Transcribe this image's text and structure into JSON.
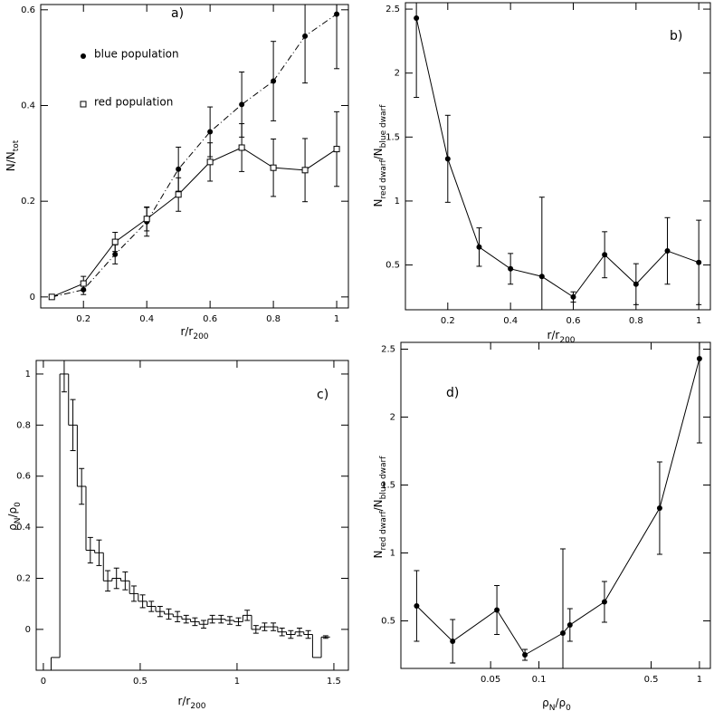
{
  "chart_data": [
    {
      "type": "line",
      "panel_label": "a)",
      "legend": "upper left",
      "xlabel": [
        {
          "text": "r/r"
        },
        {
          "text": "200",
          "sub": true
        }
      ],
      "ylabel": [
        {
          "text": "N/N"
        },
        {
          "text": "tot",
          "sub": true
        }
      ],
      "x": [
        0.1,
        0.2,
        0.3,
        0.4,
        0.5,
        0.6,
        0.7,
        0.8,
        0.9,
        1.0
      ],
      "series": [
        {
          "name": "blue population",
          "color": "#000000",
          "marker": "filled-circle",
          "linestyle": "dashdot",
          "values": [
            0,
            0.015,
            0.089,
            0.157,
            0.267,
            0.345,
            0.402,
            0.451,
            0.545,
            0.591
          ],
          "errors": [
            0.004,
            0.01,
            0.02,
            0.03,
            0.046,
            0.052,
            0.068,
            0.083,
            0.098,
            0.114
          ]
        },
        {
          "name": "red population",
          "color": "#000000",
          "marker": "open-square",
          "linestyle": "solid",
          "values": [
            0,
            0.028,
            0.115,
            0.163,
            0.214,
            0.282,
            0.312,
            0.27,
            0.265,
            0.309
          ],
          "errors": [
            0.004,
            0.015,
            0.02,
            0.025,
            0.035,
            0.04,
            0.05,
            0.06,
            0.066,
            0.078
          ]
        }
      ],
      "xlim": [
        0.065,
        1.037
      ],
      "ylim": [
        -0.023,
        0.611
      ],
      "xticks": [
        0.2,
        0.4,
        0.6,
        0.8,
        1
      ],
      "yticks": [
        0,
        0.2,
        0.4,
        0.6
      ]
    },
    {
      "type": "line",
      "panel_label": "b)",
      "xlabel": [
        {
          "text": "r/r"
        },
        {
          "text": "200",
          "sub": true
        }
      ],
      "ylabel": [
        {
          "text": "N"
        },
        {
          "text": "red dwarf",
          "sub": true
        },
        {
          "text": "/N"
        },
        {
          "text": "blue dwarf",
          "sub": true
        }
      ],
      "x": [
        0.1,
        0.2,
        0.3,
        0.4,
        0.5,
        0.6,
        0.7,
        0.8,
        0.9,
        1.0
      ],
      "series": [
        {
          "color": "#000000",
          "marker": "filled-circle",
          "linestyle": "solid",
          "values": [
            2.43,
            1.33,
            0.64,
            0.47,
            0.41,
            0.25,
            0.58,
            0.35,
            0.61,
            0.52
          ],
          "errors": [
            0.62,
            0.34,
            0.15,
            0.12,
            0.62,
            0.04,
            0.18,
            0.16,
            0.26,
            0.33
          ]
        }
      ],
      "xlim": [
        0.065,
        1.037
      ],
      "ylim": [
        0.15,
        2.55
      ],
      "xticks": [
        0.2,
        0.4,
        0.6,
        0.8,
        1
      ],
      "yticks": [
        0.5,
        1,
        1.5,
        2,
        2.5
      ]
    },
    {
      "type": "histogram",
      "panel_label": "c)",
      "color": "#000000",
      "xlabel": [
        {
          "text": "r/r"
        },
        {
          "text": "200",
          "sub": true
        }
      ],
      "ylabel": [
        {
          "text": "ρ"
        },
        {
          "text": "N",
          "sub": true
        },
        {
          "text": "/ρ"
        },
        {
          "text": "0",
          "sub": true
        }
      ],
      "bins": [
        0.04,
        0.085,
        0.13,
        0.175,
        0.22,
        0.265,
        0.31,
        0.355,
        0.4,
        0.445,
        0.49,
        0.535,
        0.58,
        0.625,
        0.67,
        0.715,
        0.76,
        0.805,
        0.85,
        0.895,
        0.94,
        0.985,
        1.03,
        1.075,
        1.12,
        1.165,
        1.21,
        1.255,
        1.3,
        1.345,
        1.39,
        1.435,
        1.48
      ],
      "values": [
        -0.11,
        1.0,
        0.8,
        0.56,
        0.31,
        0.3,
        0.19,
        0.2,
        0.19,
        0.14,
        0.11,
        0.09,
        0.07,
        0.06,
        0.05,
        0.04,
        0.03,
        0.02,
        0.04,
        0.04,
        0.035,
        0.03,
        0.055,
        0.0,
        0.01,
        0.01,
        -0.01,
        -0.02,
        -0.01,
        -0.02,
        -0.11,
        -0.03
      ],
      "errors": [
        null,
        0.07,
        0.1,
        0.07,
        0.05,
        0.05,
        0.04,
        0.04,
        0.035,
        0.03,
        0.025,
        0.02,
        0.02,
        0.02,
        0.02,
        0.015,
        0.015,
        0.015,
        0.015,
        0.015,
        0.015,
        0.015,
        0.02,
        0.015,
        0.015,
        0.015,
        0.015,
        0.015,
        0.015,
        0.015,
        null,
        0.005
      ],
      "xlim": [
        -0.037,
        1.575
      ],
      "ylim": [
        -0.16,
        1.053
      ],
      "xticks": [
        0,
        0.5,
        1,
        1.5
      ],
      "yticks": [
        0,
        0.2,
        0.4,
        0.6,
        0.8,
        1
      ]
    },
    {
      "type": "line",
      "panel_label": "d)",
      "xscale": "log",
      "xlabel": [
        {
          "text": "ρ"
        },
        {
          "text": "N",
          "sub": true
        },
        {
          "text": "/ρ"
        },
        {
          "text": "0",
          "sub": true
        }
      ],
      "ylabel": [
        {
          "text": "N"
        },
        {
          "text": "red dwarf",
          "sub": true
        },
        {
          "text": "/N"
        },
        {
          "text": "blue dwarf",
          "sub": true
        }
      ],
      "x": [
        0.0173,
        0.029,
        0.0547,
        0.0818,
        0.141,
        0.156,
        0.256,
        0.565,
        1.0
      ],
      "series": [
        {
          "color": "#000000",
          "marker": "filled-circle",
          "linestyle": "solid",
          "values": [
            0.61,
            0.35,
            0.58,
            0.25,
            0.41,
            0.47,
            0.64,
            1.33,
            2.43
          ],
          "errors": [
            0.26,
            0.16,
            0.18,
            0.04,
            0.62,
            0.12,
            0.15,
            0.34,
            0.62
          ]
        }
      ],
      "xlim": [
        0.0138,
        1.17
      ],
      "ylim": [
        0.15,
        2.55
      ],
      "xticks": [
        0.05,
        0.1,
        0.5,
        1
      ],
      "yticks": [
        0.5,
        1,
        1.5,
        2,
        2.5
      ]
    }
  ]
}
